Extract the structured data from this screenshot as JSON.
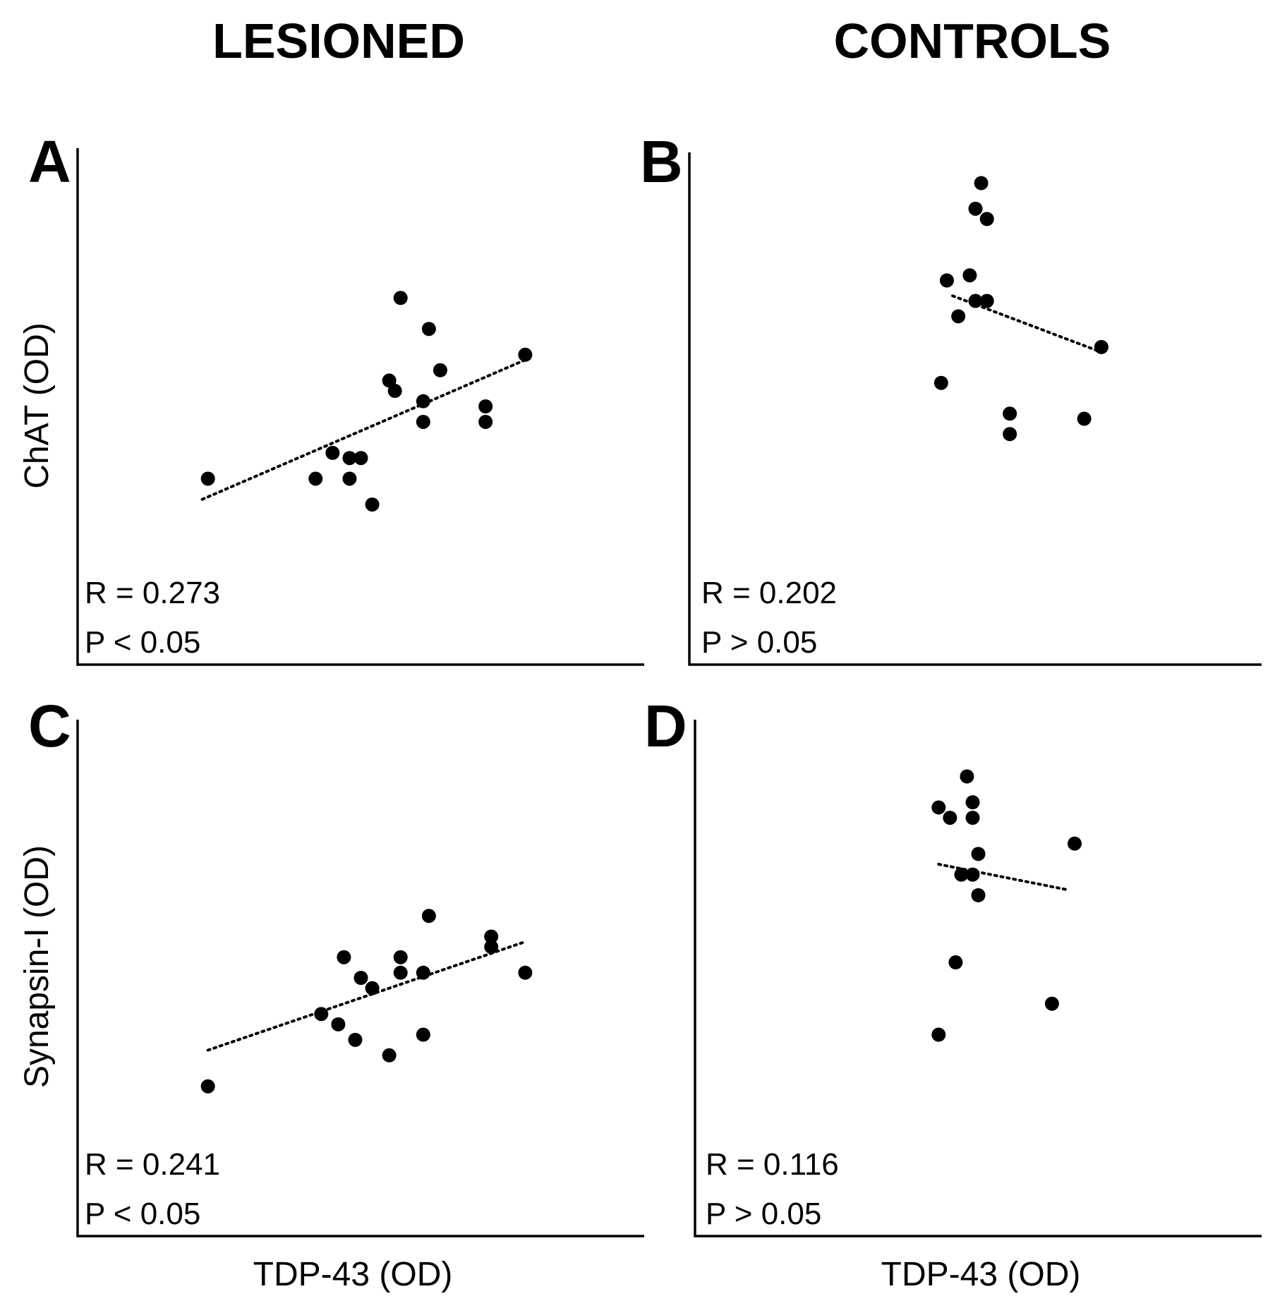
{
  "column_titles": {
    "left": "LESIONED",
    "right": "CONTROLS"
  },
  "row_ylabels": {
    "top": "ChAT (OD)",
    "bottom": "Synapsin-I (OD)"
  },
  "xlabels": {
    "left": "TDP-43 (OD)",
    "right": "TDP-43 (OD)"
  },
  "colors": {
    "points": "#000000",
    "axes": "#000000",
    "text": "#000000"
  },
  "chart_data": [
    {
      "panel": "A",
      "type": "scatter",
      "group": "LESIONED",
      "xlabel": "TDP-43 (OD)",
      "ylabel": "ChAT (OD)",
      "xlim": [
        0,
        100
      ],
      "ylim": [
        0,
        100
      ],
      "points": [
        {
          "x": 23,
          "y": 36
        },
        {
          "x": 42,
          "y": 36
        },
        {
          "x": 45,
          "y": 41
        },
        {
          "x": 48,
          "y": 40
        },
        {
          "x": 50,
          "y": 40
        },
        {
          "x": 48,
          "y": 36
        },
        {
          "x": 52,
          "y": 31
        },
        {
          "x": 55,
          "y": 55
        },
        {
          "x": 56,
          "y": 53
        },
        {
          "x": 57,
          "y": 71
        },
        {
          "x": 61,
          "y": 47
        },
        {
          "x": 61,
          "y": 51
        },
        {
          "x": 62,
          "y": 65
        },
        {
          "x": 64,
          "y": 57
        },
        {
          "x": 72,
          "y": 50
        },
        {
          "x": 72,
          "y": 47
        },
        {
          "x": 79,
          "y": 60
        }
      ],
      "trend": {
        "x": [
          22,
          79
        ],
        "y": [
          32,
          59
        ]
      },
      "stats": {
        "r": "R = 0.273",
        "p": "P < 0.05"
      }
    },
    {
      "panel": "B",
      "type": "scatter",
      "group": "CONTROLS",
      "xlabel": "",
      "ylabel": "",
      "xlim": [
        0,
        100
      ],
      "ylim": [
        0,
        100
      ],
      "points": [
        {
          "x": 51,
          "y": 94
        },
        {
          "x": 50,
          "y": 89
        },
        {
          "x": 52,
          "y": 87
        },
        {
          "x": 45,
          "y": 75
        },
        {
          "x": 49,
          "y": 76
        },
        {
          "x": 50,
          "y": 71
        },
        {
          "x": 52,
          "y": 71
        },
        {
          "x": 47,
          "y": 68
        },
        {
          "x": 72,
          "y": 62
        },
        {
          "x": 44,
          "y": 55
        },
        {
          "x": 56,
          "y": 49
        },
        {
          "x": 56,
          "y": 45
        },
        {
          "x": 69,
          "y": 48
        }
      ],
      "trend": {
        "x": [
          46,
          72
        ],
        "y": [
          72,
          61
        ]
      },
      "stats": {
        "r": "R = 0.202",
        "p": "P > 0.05"
      }
    },
    {
      "panel": "C",
      "type": "scatter",
      "group": "LESIONED",
      "xlabel": "TDP-43 (OD)",
      "ylabel": "Synapsin-I (OD)",
      "xlim": [
        0,
        100
      ],
      "ylim": [
        0,
        100
      ],
      "points": [
        {
          "x": 23,
          "y": 29
        },
        {
          "x": 43,
          "y": 43
        },
        {
          "x": 46,
          "y": 41
        },
        {
          "x": 47,
          "y": 54
        },
        {
          "x": 50,
          "y": 50
        },
        {
          "x": 52,
          "y": 48
        },
        {
          "x": 49,
          "y": 38
        },
        {
          "x": 55,
          "y": 35
        },
        {
          "x": 57,
          "y": 54
        },
        {
          "x": 57,
          "y": 51
        },
        {
          "x": 61,
          "y": 51
        },
        {
          "x": 61,
          "y": 39
        },
        {
          "x": 62,
          "y": 62
        },
        {
          "x": 73,
          "y": 58
        },
        {
          "x": 73,
          "y": 56
        },
        {
          "x": 79,
          "y": 51
        }
      ],
      "trend": {
        "x": [
          23,
          79
        ],
        "y": [
          36,
          57
        ]
      },
      "stats": {
        "r": "R = 0.241",
        "p": "P < 0.05"
      }
    },
    {
      "panel": "D",
      "type": "scatter",
      "group": "CONTROLS",
      "xlabel": "TDP-43 (OD)",
      "ylabel": "",
      "xlim": [
        0,
        100
      ],
      "ylim": [
        0,
        100
      ],
      "points": [
        {
          "x": 48,
          "y": 89
        },
        {
          "x": 43,
          "y": 83
        },
        {
          "x": 45,
          "y": 81
        },
        {
          "x": 49,
          "y": 84
        },
        {
          "x": 49,
          "y": 81
        },
        {
          "x": 50,
          "y": 74
        },
        {
          "x": 47,
          "y": 70
        },
        {
          "x": 49,
          "y": 70
        },
        {
          "x": 50,
          "y": 66
        },
        {
          "x": 67,
          "y": 76
        },
        {
          "x": 46,
          "y": 53
        },
        {
          "x": 63,
          "y": 45
        },
        {
          "x": 43,
          "y": 39
        }
      ],
      "trend": {
        "x": [
          43,
          66
        ],
        "y": [
          72,
          67
        ]
      },
      "stats": {
        "r": "R = 0.116",
        "p": "P > 0.05"
      }
    }
  ]
}
